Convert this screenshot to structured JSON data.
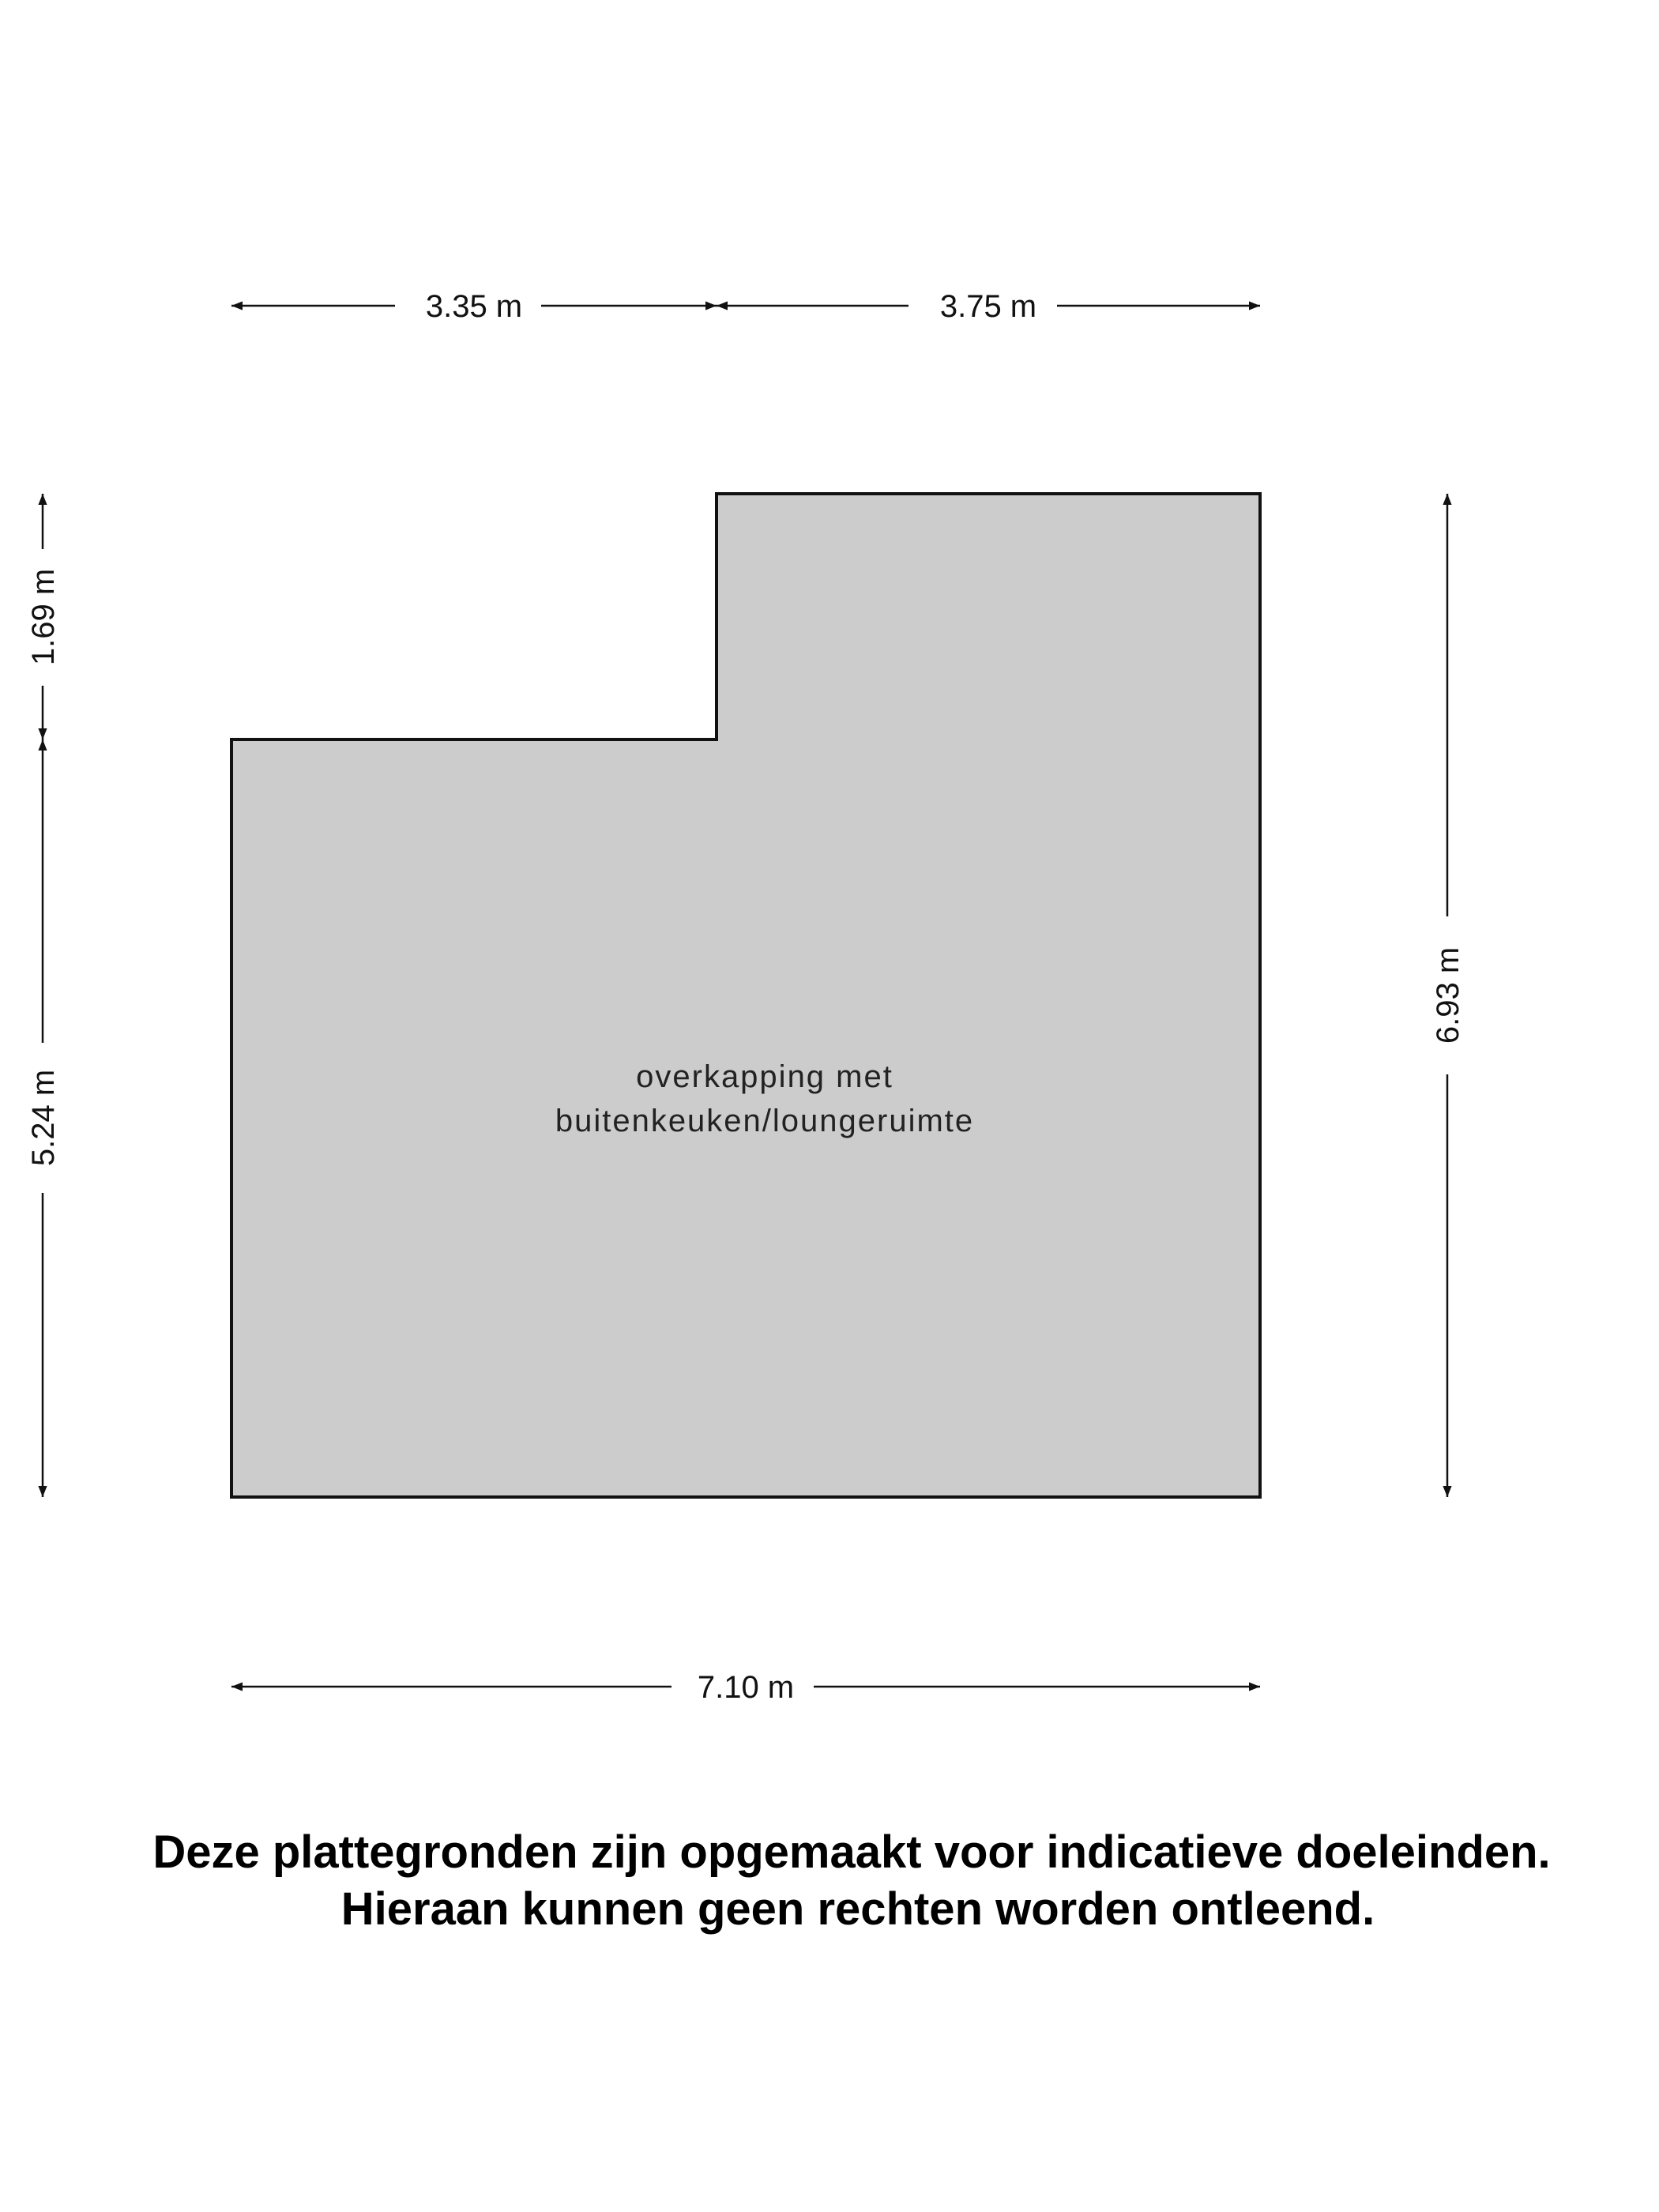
{
  "floorplan": {
    "room_label_line1": "overkapping met",
    "room_label_line2": "buitenkeuken/loungeruimte",
    "fill_color": "#cccccc",
    "wall_color": "#111111",
    "dimensions": {
      "top_left": "3.35 m",
      "top_right": "3.75 m",
      "left_upper": "1.69 m",
      "left_lower": "5.24 m",
      "right": "6.93 m",
      "bottom": "7.10 m"
    }
  },
  "disclaimer": {
    "line1": "Deze plattegronden zijn opgemaakt voor indicatieve doeleinden.",
    "line2": "Hieraan kunnen geen rechten worden ontleend."
  }
}
